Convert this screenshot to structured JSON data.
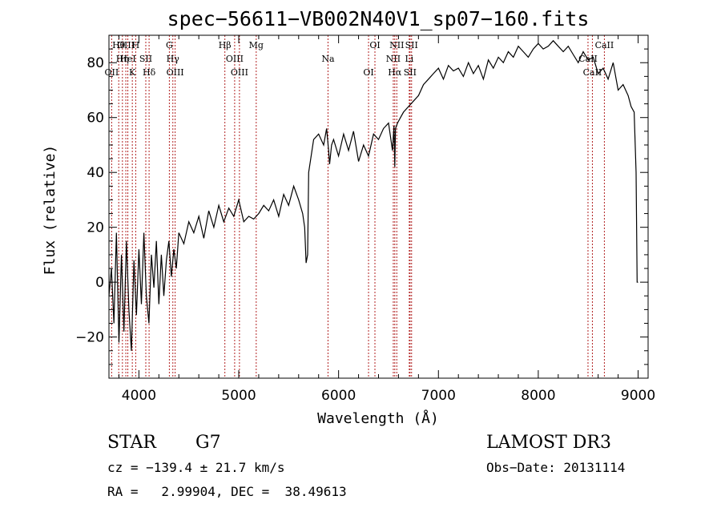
{
  "chart_data": {
    "type": "line",
    "title": "spec−56611−VB002N40V1_sp07−160.fits",
    "xlabel": "Wavelength (Å)",
    "ylabel": "Flux (relative)",
    "xlim": [
      3700,
      9100
    ],
    "ylim": [
      -35,
      90
    ],
    "xticks": [
      4000,
      5000,
      6000,
      7000,
      8000,
      9000
    ],
    "xtick_labels": [
      "4000",
      "5000",
      "6000",
      "7000",
      "8000",
      "9000"
    ],
    "yticks": [
      -20,
      0,
      20,
      40,
      60,
      80
    ],
    "ytick_labels": [
      "−20",
      "0",
      "20",
      "40",
      "60",
      "80"
    ],
    "series": [
      {
        "name": "flux",
        "x": [
          3700,
          3725,
          3750,
          3775,
          3800,
          3825,
          3850,
          3875,
          3900,
          3925,
          3950,
          3975,
          4000,
          4025,
          4050,
          4075,
          4100,
          4125,
          4150,
          4175,
          4200,
          4225,
          4250,
          4275,
          4300,
          4325,
          4350,
          4375,
          4400,
          4450,
          4500,
          4550,
          4600,
          4650,
          4700,
          4750,
          4800,
          4850,
          4900,
          4950,
          5000,
          5050,
          5100,
          5150,
          5200,
          5250,
          5300,
          5350,
          5400,
          5450,
          5500,
          5550,
          5600,
          5640,
          5660,
          5675,
          5690,
          5700,
          5750,
          5800,
          5850,
          5880,
          5900,
          5910,
          5930,
          5950,
          6000,
          6050,
          6100,
          6150,
          6200,
          6250,
          6300,
          6350,
          6400,
          6450,
          6500,
          6540,
          6555,
          6563,
          6570,
          6590,
          6620,
          6650,
          6700,
          6750,
          6800,
          6850,
          6900,
          6950,
          7000,
          7050,
          7100,
          7150,
          7200,
          7250,
          7300,
          7350,
          7400,
          7450,
          7500,
          7550,
          7600,
          7650,
          7700,
          7750,
          7800,
          7850,
          7900,
          7950,
          8000,
          8050,
          8100,
          8150,
          8200,
          8250,
          8300,
          8350,
          8400,
          8450,
          8500,
          8550,
          8600,
          8650,
          8700,
          8750,
          8800,
          8850,
          8900,
          8930,
          8960,
          8980,
          8990,
          9000
        ],
        "y": [
          -5,
          5,
          -15,
          18,
          -22,
          10,
          -18,
          15,
          -10,
          -25,
          8,
          -12,
          12,
          -8,
          18,
          -5,
          -15,
          10,
          -2,
          15,
          -8,
          10,
          -5,
          8,
          15,
          2,
          12,
          5,
          18,
          14,
          22,
          18,
          24,
          16,
          26,
          20,
          28,
          22,
          27,
          24,
          30,
          22,
          24,
          23,
          25,
          28,
          26,
          30,
          24,
          32,
          28,
          35,
          30,
          25,
          20,
          7,
          10,
          40,
          52,
          54,
          50,
          56,
          48,
          43,
          50,
          52,
          46,
          54,
          48,
          55,
          44,
          50,
          46,
          54,
          52,
          56,
          58,
          48,
          57,
          42,
          56,
          58,
          60,
          62,
          64,
          66,
          68,
          72,
          74,
          76,
          78,
          74,
          79,
          77,
          78,
          75,
          80,
          76,
          79,
          74,
          81,
          78,
          82,
          80,
          84,
          82,
          86,
          84,
          82,
          85,
          87,
          85,
          86,
          88,
          86,
          84,
          86,
          83,
          80,
          84,
          81,
          82,
          76,
          78,
          74,
          80,
          70,
          72,
          68,
          64,
          62,
          40,
          0,
          0
        ]
      }
    ],
    "line_marks": [
      {
        "name": "Hθ",
        "wavelength": 3798
      },
      {
        "name": "Hη",
        "wavelength": 3835
      },
      {
        "name": "OII",
        "wavelength": 3727
      },
      {
        "name": "OIII",
        "wavelength": 3869
      },
      {
        "name": "HeI",
        "wavelength": 3889
      },
      {
        "name": "K",
        "wavelength": 3934
      },
      {
        "name": "H",
        "wavelength": 3968
      },
      {
        "name": "SII",
        "wavelength": 4069
      },
      {
        "name": "Hδ",
        "wavelength": 4102
      },
      {
        "name": "G",
        "wavelength": 4305
      },
      {
        "name": "Hγ",
        "wavelength": 4340
      },
      {
        "name": "OIII",
        "wavelength": 4363
      },
      {
        "name": "Hβ",
        "wavelength": 4861
      },
      {
        "name": "OIII",
        "wavelength": 4959
      },
      {
        "name": "OIII",
        "wavelength": 5007
      },
      {
        "name": "Mg",
        "wavelength": 5175
      },
      {
        "name": "Na",
        "wavelength": 5894
      },
      {
        "name": "OI",
        "wavelength": 6300
      },
      {
        "name": "OI",
        "wavelength": 6364
      },
      {
        "name": "NII",
        "wavelength": 6548
      },
      {
        "name": "Hα",
        "wavelength": 6563
      },
      {
        "name": "NII",
        "wavelength": 6583
      },
      {
        "name": "Li",
        "wavelength": 6708
      },
      {
        "name": "SII",
        "wavelength": 6716
      },
      {
        "name": "SII",
        "wavelength": 6731
      },
      {
        "name": "CaII",
        "wavelength": 8498
      },
      {
        "name": "CaII",
        "wavelength": 8542
      },
      {
        "name": "CaII",
        "wavelength": 8662
      }
    ],
    "colors": {
      "spectrum": "#000000",
      "line_marks": "#b22222"
    }
  },
  "info": {
    "class_label": "STAR",
    "subclass": "G7",
    "survey": "LAMOST DR3",
    "cz": "cz = −139.4 ± 21.7 km/s",
    "obs_date": "Obs−Date: 20131114",
    "coords": "RA =   2.99904, DEC =  38.49613"
  }
}
